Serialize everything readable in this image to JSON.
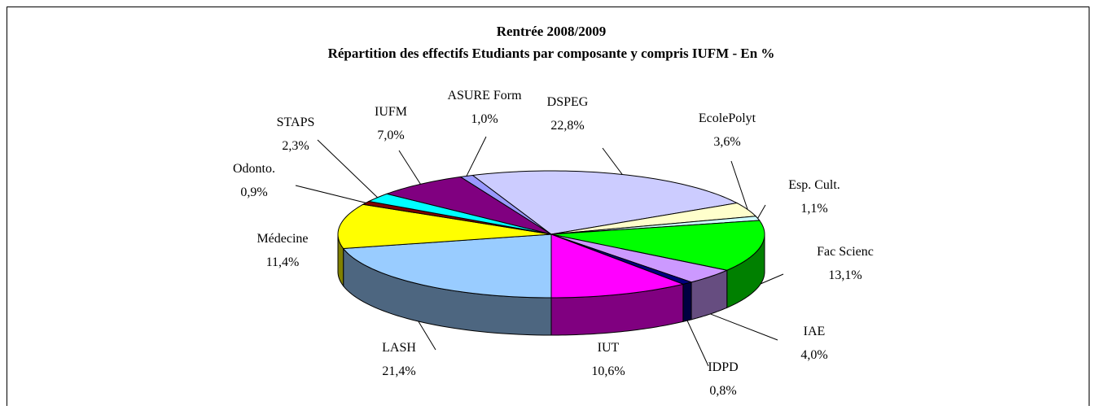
{
  "chart_data": {
    "type": "pie3d",
    "title": "Rentrée 2008/2009",
    "subtitle": "Répartition des effectifs Etudiants par composante y compris IUFM - En %",
    "categories": [
      "ASURE Form",
      "DSPEG",
      "EcolePolyt",
      "Esp. Cult.",
      "Fac Scienc",
      "IAE",
      "IDPD",
      "IUT",
      "LASH",
      "Médecine",
      "Odonto.",
      "STAPS",
      "IUFM"
    ],
    "values": [
      1.0,
      22.8,
      3.6,
      1.1,
      13.1,
      4.0,
      0.8,
      10.6,
      21.4,
      11.4,
      0.9,
      2.3,
      7.0
    ],
    "value_labels": [
      "1,0%",
      "22,8%",
      "3,6%",
      "1,1%",
      "13,1%",
      "4,0%",
      "0,8%",
      "10,6%",
      "21,4%",
      "11,4%",
      "0,9%",
      "2,3%",
      "7,0%"
    ],
    "colors": [
      "#9999ff",
      "#ccccff",
      "#ffffcc",
      "#ccffff",
      "#00ff00",
      "#cc99ff",
      "#000080",
      "#ff00ff",
      "#99ccff",
      "#ffff00",
      "#800000",
      "#00ffff",
      "#800080"
    ]
  }
}
